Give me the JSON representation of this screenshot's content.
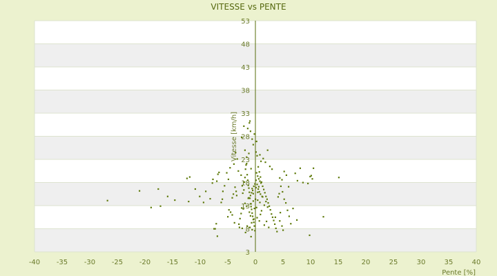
{
  "chart_data": {
    "type": "scatter",
    "title": "VITESSE vs PENTE",
    "xlabel": "Pente [%]",
    "ylabel": "Vitesse [km/h]",
    "xlim": [
      -40,
      40
    ],
    "ylim": [
      3,
      53
    ],
    "xticks": [
      "-40",
      "-35",
      "-30",
      "-25",
      "-20",
      "-15",
      "-10",
      "-5",
      "0",
      "5",
      "10",
      "15",
      "20",
      "25",
      "30",
      "35",
      "40"
    ],
    "yticks": [
      "3",
      "8",
      "13",
      "18",
      "23",
      "28",
      "33",
      "38",
      "43",
      "48",
      "53"
    ],
    "grid": true,
    "legend": "none",
    "colors": {
      "background": "#ecf2cf",
      "plot_band_light": "#ffffff",
      "plot_band_dark": "#efefef",
      "axis": "#556b0a",
      "point": "#5f7a0b",
      "text": "#6a7a2a"
    },
    "points": [
      [
        -26.8,
        14.1
      ],
      [
        -21,
        16.2
      ],
      [
        -17.6,
        16.6
      ],
      [
        -18.9,
        12.6
      ],
      [
        -17.2,
        12.9
      ],
      [
        -15.9,
        15.0
      ],
      [
        -14.6,
        14.2
      ],
      [
        -12.1,
        13.9
      ],
      [
        -11.9,
        19.2
      ],
      [
        -12.4,
        18.9
      ],
      [
        -10.9,
        16.6
      ],
      [
        -10.1,
        15.0
      ],
      [
        -9.4,
        13.7
      ],
      [
        -9.0,
        16.1
      ],
      [
        -8.2,
        14.5
      ],
      [
        -7.8,
        17.9
      ],
      [
        -7.7,
        18.7
      ],
      [
        -7.5,
        8.0
      ],
      [
        -7.3,
        8.0
      ],
      [
        -7.0,
        18.3
      ],
      [
        -6.8,
        19.8
      ],
      [
        -6.6,
        20.2
      ],
      [
        -6.2,
        13.7
      ],
      [
        -6.0,
        14.4
      ],
      [
        -6.9,
        6.4
      ],
      [
        -7.1,
        9.1
      ],
      [
        -5.0,
        10.6
      ],
      [
        -4.8,
        12.1
      ],
      [
        -4.5,
        11.6
      ],
      [
        -4.2,
        14.7
      ],
      [
        -4.0,
        15.5
      ],
      [
        -3.7,
        17.0
      ],
      [
        -3.5,
        16.1
      ],
      [
        -3.4,
        15.2
      ],
      [
        -3.0,
        9.0
      ],
      [
        -2.9,
        8.3
      ],
      [
        -2.8,
        10.2
      ],
      [
        -2.6,
        11.3
      ],
      [
        -2.5,
        12.5
      ],
      [
        -2.3,
        15.7
      ],
      [
        -2.1,
        16.4
      ],
      [
        -2.0,
        18.1
      ],
      [
        -1.9,
        19.1
      ],
      [
        -1.8,
        20.9
      ],
      [
        -1.7,
        21.8
      ],
      [
        -1.6,
        22.1
      ],
      [
        -1.5,
        19.7
      ],
      [
        -1.4,
        18.5
      ],
      [
        -1.3,
        17.4
      ],
      [
        -1.2,
        16.8
      ],
      [
        -1.1,
        15.9
      ],
      [
        -1.0,
        14.6
      ],
      [
        -0.9,
        13.4
      ],
      [
        -0.8,
        12.8
      ],
      [
        -0.7,
        12.2
      ],
      [
        -0.6,
        11.4
      ],
      [
        -0.5,
        10.7
      ],
      [
        -0.4,
        10.0
      ],
      [
        -0.3,
        9.4
      ],
      [
        -0.2,
        8.6
      ],
      [
        -0.1,
        7.6
      ],
      [
        -1.4,
        29.7
      ],
      [
        -1.1,
        30.9
      ],
      [
        -0.9,
        29.1
      ],
      [
        -0.6,
        27.4
      ],
      [
        -0.4,
        26.2
      ],
      [
        -2.1,
        30.2
      ],
      [
        -1.9,
        25.0
      ],
      [
        -1.6,
        23.5
      ],
      [
        -1.2,
        24.3
      ],
      [
        -0.8,
        21.0
      ],
      [
        -2.5,
        27.8
      ],
      [
        -1.0,
        31.3
      ],
      [
        -0.2,
        28.5
      ],
      [
        -3.3,
        23.1
      ],
      [
        -3.1,
        20.5
      ],
      [
        -2.6,
        19.6
      ],
      [
        0.1,
        24.6
      ],
      [
        0.3,
        23.8
      ],
      [
        0.5,
        21.4
      ],
      [
        0.7,
        20.3
      ],
      [
        0.9,
        19.2
      ],
      [
        1.1,
        18.1
      ],
      [
        1.3,
        17.2
      ],
      [
        1.5,
        16.5
      ],
      [
        1.7,
        15.8
      ],
      [
        1.9,
        15.0
      ],
      [
        2.1,
        14.4
      ],
      [
        2.3,
        13.6
      ],
      [
        2.5,
        12.9
      ],
      [
        2.7,
        12.1
      ],
      [
        2.9,
        11.2
      ],
      [
        3.1,
        10.5
      ],
      [
        3.3,
        9.8
      ],
      [
        3.5,
        9.0
      ],
      [
        3.7,
        8.1
      ],
      [
        3.9,
        7.4
      ],
      [
        4.1,
        14.9
      ],
      [
        4.3,
        15.6
      ],
      [
        4.6,
        17.2
      ],
      [
        4.9,
        16.0
      ],
      [
        5.2,
        14.4
      ],
      [
        5.5,
        13.6
      ],
      [
        5.8,
        12.0
      ],
      [
        6.1,
        10.7
      ],
      [
        6.4,
        9.1
      ],
      [
        6.0,
        17.1
      ],
      [
        5.6,
        19.6
      ],
      [
        5.2,
        20.4
      ],
      [
        4.8,
        18.6
      ],
      [
        4.4,
        19.0
      ],
      [
        0.2,
        20.1
      ],
      [
        0.4,
        19.4
      ],
      [
        0.6,
        18.8
      ],
      [
        0.8,
        18.3
      ],
      [
        1.0,
        17.9
      ],
      [
        0.3,
        17.6
      ],
      [
        -0.3,
        17.2
      ],
      [
        0.1,
        16.9
      ],
      [
        0.5,
        16.6
      ],
      [
        -0.5,
        16.3
      ],
      [
        0.7,
        16.0
      ],
      [
        -0.7,
        15.8
      ],
      [
        0.9,
        15.5
      ],
      [
        -0.9,
        15.2
      ],
      [
        1.2,
        15.0
      ],
      [
        -1.2,
        14.7
      ],
      [
        0.0,
        14.4
      ],
      [
        0.4,
        14.2
      ],
      [
        -0.4,
        14.0
      ],
      [
        0.8,
        13.7
      ],
      [
        -0.8,
        13.4
      ],
      [
        1.6,
        13.1
      ],
      [
        -1.6,
        12.9
      ],
      [
        0.2,
        12.6
      ],
      [
        -0.2,
        12.4
      ],
      [
        7.2,
        20.0
      ],
      [
        8.1,
        21.1
      ],
      [
        7.6,
        18.4
      ],
      [
        8.6,
        18.0
      ],
      [
        9.5,
        17.8
      ],
      [
        9.9,
        19.3
      ],
      [
        10.3,
        18.8
      ],
      [
        10.5,
        21.1
      ],
      [
        10.1,
        19.5
      ],
      [
        15.1,
        19.1
      ],
      [
        12.3,
        10.6
      ],
      [
        9.8,
        6.6
      ],
      [
        3.0,
        20.9
      ],
      [
        2.6,
        21.5
      ],
      [
        1.8,
        22.4
      ],
      [
        2.2,
        25.0
      ],
      [
        1.4,
        23.2
      ],
      [
        1.0,
        22.6
      ],
      [
        0.2,
        26.9
      ],
      [
        0.8,
        24.0
      ],
      [
        -5.2,
        20.1
      ],
      [
        -4.6,
        21.2
      ],
      [
        -3.9,
        22.0
      ],
      [
        -3.6,
        24.5
      ],
      [
        -5.6,
        17.3
      ],
      [
        -5.9,
        16.1
      ],
      [
        -4.9,
        18.7
      ],
      [
        -2.4,
        17.3
      ],
      [
        -1.5,
        8.6
      ],
      [
        -1.0,
        8.3
      ],
      [
        -0.6,
        7.8
      ],
      [
        -1.8,
        7.2
      ],
      [
        -2.4,
        8.1
      ],
      [
        -0.8,
        6.3
      ],
      [
        -3.8,
        9.3
      ],
      [
        -4.2,
        11.0
      ],
      [
        2.0,
        9.6
      ],
      [
        2.4,
        8.3
      ],
      [
        1.6,
        8.8
      ],
      [
        4.4,
        9.7
      ],
      [
        4.8,
        8.6
      ],
      [
        5.0,
        7.7
      ],
      [
        3.6,
        10.5
      ],
      [
        4.5,
        11.5
      ],
      [
        6.8,
        12.4
      ],
      [
        7.5,
        9.9
      ],
      [
        0.1,
        18.5
      ],
      [
        -0.1,
        17.7
      ],
      [
        0.6,
        17.1
      ],
      [
        -0.6,
        16.7
      ],
      [
        0.4,
        15.9
      ],
      [
        -0.4,
        15.6
      ],
      [
        1.3,
        14.9
      ],
      [
        -1.3,
        14.6
      ],
      [
        1.9,
        13.9
      ],
      [
        -1.9,
        13.5
      ],
      [
        2.2,
        12.7
      ],
      [
        -2.2,
        12.3
      ],
      [
        1.1,
        11.9
      ],
      [
        -1.1,
        11.6
      ],
      [
        0.9,
        11.1
      ],
      [
        -0.9,
        10.8
      ],
      [
        0.3,
        10.4
      ],
      [
        -0.3,
        10.1
      ],
      [
        0.7,
        9.7
      ],
      [
        -0.7,
        9.3
      ]
    ]
  }
}
